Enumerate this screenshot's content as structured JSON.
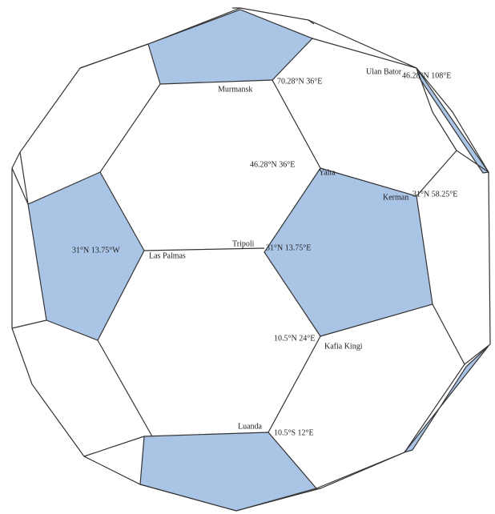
{
  "places": [
    {
      "city": "Murmansk",
      "coord": "70.28°N 36°E"
    },
    {
      "city": "Ulan Bator",
      "coord": "46.28°N 108°E"
    },
    {
      "city": "Yalta",
      "coord": "46.28°N 36°E"
    },
    {
      "city": "Kerman",
      "coord": "31°N 58.25°E"
    },
    {
      "city": "Las Palmas",
      "coord": "31°N 13.75°W"
    },
    {
      "city": "Tripoli",
      "coord": "31°N 13.75°E"
    },
    {
      "city": "Kafia Kingi",
      "coord": "10.5°N 24°E"
    },
    {
      "city": "Luanda",
      "coord": "10.5°S 12°E"
    }
  ]
}
